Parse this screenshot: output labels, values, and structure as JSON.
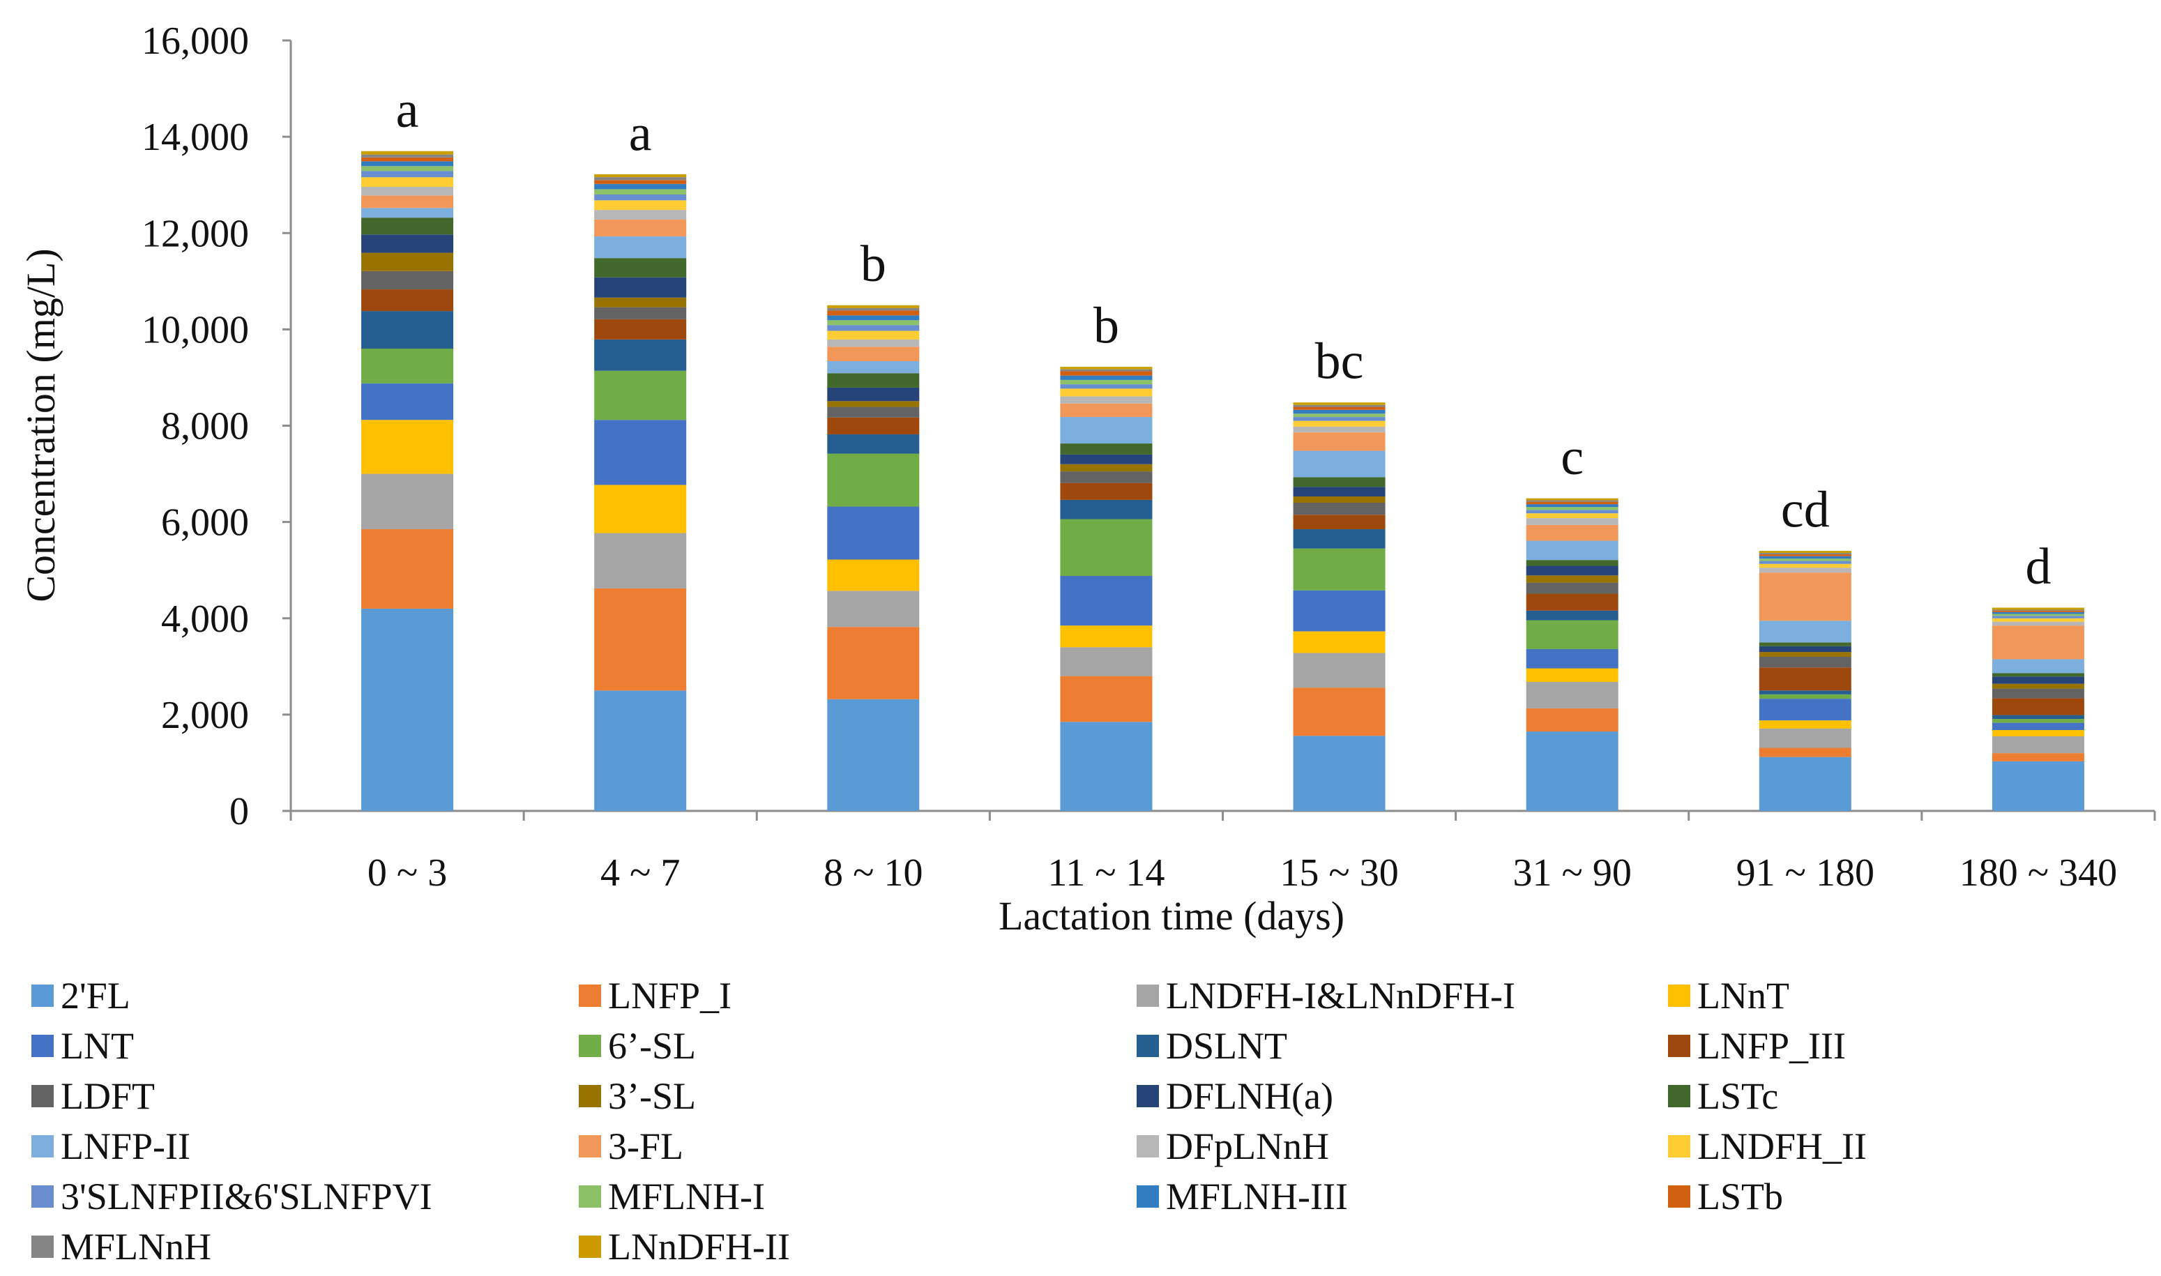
{
  "chart_data": {
    "type": "bar",
    "stacked": true,
    "title": "",
    "xlabel": "Lactation time (days)",
    "ylabel": "Concentration (mg/L)",
    "ylim": [
      0,
      16000
    ],
    "yticks": [
      0,
      2000,
      4000,
      6000,
      8000,
      10000,
      12000,
      14000,
      16000
    ],
    "ytick_labels": [
      "0",
      "2,000",
      "4,000",
      "6,000",
      "8,000",
      "10,000",
      "12,000",
      "14,000",
      "16,000"
    ],
    "categories": [
      "0 ~ 3",
      "4 ~ 7",
      "8 ~ 10",
      "11 ~ 14",
      "15 ~ 30",
      "31 ~ 90",
      "91 ~ 180",
      "180 ~ 340"
    ],
    "significance_letters": [
      "a",
      "a",
      "b",
      "b",
      "bc",
      "c",
      "cd",
      "d"
    ],
    "legend_position": "bottom",
    "series": [
      {
        "name": "2'FL",
        "color": "#5b9bd5",
        "values": [
          4200,
          2500,
          2320,
          1850,
          1560,
          1650,
          1120,
          1030
        ]
      },
      {
        "name": "LNFP_I",
        "color": "#ed7d31",
        "values": [
          1650,
          2120,
          1500,
          950,
          1000,
          480,
          190,
          170
        ]
      },
      {
        "name": "LNDFH-I&LNnDFH-I",
        "color": "#a5a5a5",
        "values": [
          1150,
          1150,
          750,
          600,
          720,
          550,
          400,
          350
        ]
      },
      {
        "name": "LNnT",
        "color": "#ffc000",
        "values": [
          1120,
          1000,
          650,
          450,
          450,
          280,
          170,
          130
        ]
      },
      {
        "name": "LNT",
        "color": "#4472c4",
        "values": [
          760,
          1350,
          1100,
          1030,
          850,
          400,
          450,
          150
        ]
      },
      {
        "name": "6’-SL",
        "color": "#70ad47",
        "values": [
          720,
          1020,
          1100,
          1180,
          870,
          600,
          90,
          80
        ]
      },
      {
        "name": "DSLNT",
        "color": "#255e91",
        "values": [
          780,
          650,
          400,
          400,
          400,
          200,
          80,
          80
        ]
      },
      {
        "name": "LNFP_III",
        "color": "#9e480e",
        "values": [
          450,
          420,
          350,
          350,
          300,
          350,
          480,
          350
        ]
      },
      {
        "name": "LDFT",
        "color": "#636363",
        "values": [
          380,
          250,
          220,
          240,
          250,
          230,
          220,
          200
        ]
      },
      {
        "name": "3’-SL",
        "color": "#997300",
        "values": [
          380,
          200,
          120,
          150,
          130,
          150,
          100,
          100
        ]
      },
      {
        "name": "DFLNH(a)",
        "color": "#264478",
        "values": [
          380,
          420,
          280,
          200,
          200,
          200,
          120,
          150
        ]
      },
      {
        "name": "LSTc",
        "color": "#43682b",
        "values": [
          350,
          400,
          300,
          230,
          200,
          120,
          80,
          70
        ]
      },
      {
        "name": "LNFP-II",
        "color": "#7cafdd",
        "values": [
          200,
          450,
          250,
          550,
          550,
          400,
          450,
          290
        ]
      },
      {
        "name": "3-FL",
        "color": "#f1975a",
        "values": [
          260,
          350,
          300,
          280,
          380,
          330,
          1000,
          700
        ]
      },
      {
        "name": "DFpLNnH",
        "color": "#b7b7b7",
        "values": [
          180,
          200,
          150,
          150,
          120,
          140,
          100,
          80
        ]
      },
      {
        "name": "LNDFH_II",
        "color": "#ffcd33",
        "values": [
          200,
          200,
          180,
          160,
          120,
          100,
          80,
          70
        ]
      },
      {
        "name": "3'SLNFPII&6'SLNFPVI",
        "color": "#698ed0",
        "values": [
          130,
          120,
          120,
          90,
          80,
          70,
          60,
          50
        ]
      },
      {
        "name": "MFLNH-I",
        "color": "#8cc168",
        "values": [
          100,
          110,
          100,
          90,
          70,
          60,
          50,
          40
        ]
      },
      {
        "name": "MFLNH-III",
        "color": "#327dc2",
        "values": [
          100,
          110,
          100,
          90,
          80,
          60,
          50,
          40
        ]
      },
      {
        "name": "LSTb",
        "color": "#d26012",
        "values": [
          80,
          80,
          100,
          90,
          60,
          50,
          40,
          30
        ]
      },
      {
        "name": "MFLNnH",
        "color": "#848484",
        "values": [
          60,
          60,
          50,
          40,
          40,
          30,
          30,
          20
        ]
      },
      {
        "name": "LNnDFH-II",
        "color": "#cc9a00",
        "values": [
          50,
          40,
          40,
          30,
          30,
          20,
          20,
          20
        ]
      }
    ]
  }
}
